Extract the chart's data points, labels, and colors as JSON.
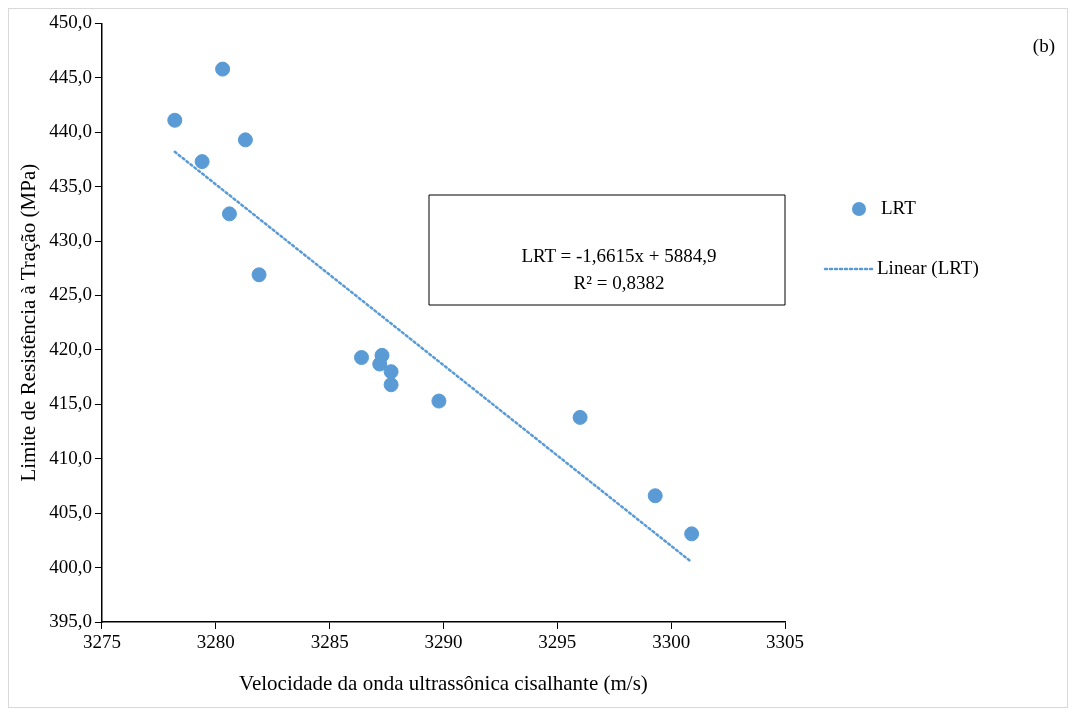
{
  "chart_data": {
    "type": "scatter",
    "xlabel": "Velocidade da onda ultrassônica cisalhante (m/s)",
    "ylabel": "Limite de Resistência à Tração (MPa)",
    "xlim": [
      3275,
      3305
    ],
    "xticks": [
      3275,
      3280,
      3285,
      3290,
      3295,
      3300,
      3305
    ],
    "ylim": [
      395,
      450
    ],
    "yticks": [
      {
        "value": 395,
        "label": "395,0"
      },
      {
        "value": 400,
        "label": "400,0"
      },
      {
        "value": 405,
        "label": "405,0"
      },
      {
        "value": 410,
        "label": "410,0"
      },
      {
        "value": 415,
        "label": "415,0"
      },
      {
        "value": 420,
        "label": "420,0"
      },
      {
        "value": 425,
        "label": "425,0"
      },
      {
        "value": 430,
        "label": "430,0"
      },
      {
        "value": 435,
        "label": "435,0"
      },
      {
        "value": 440,
        "label": "440,0"
      },
      {
        "value": 445,
        "label": "445,0"
      },
      {
        "value": 450,
        "label": "450,0"
      }
    ],
    "grid": false,
    "legend": "right",
    "marker": "circle",
    "series": [
      {
        "name": "LRT",
        "color": "#5b9bd5",
        "x": [
          3278.2,
          3280.3,
          3281.3,
          3279.4,
          3280.6,
          3281.9,
          3286.4,
          3287.3,
          3287.2,
          3287.7,
          3287.7,
          3289.8,
          3296.0,
          3299.3,
          3300.9
        ],
        "values": [
          441.1,
          445.8,
          439.3,
          437.3,
          432.5,
          426.9,
          419.3,
          419.5,
          418.7,
          418.0,
          416.8,
          415.3,
          413.8,
          406.6,
          403.1
        ]
      },
      {
        "name": "Linear (LRT)",
        "type": "line",
        "color": "#5b9bd5",
        "line_style": "dotted",
        "marker": "none",
        "x": [
          3278.2,
          3300.9
        ],
        "values": [
          438.2,
          400.5
        ]
      }
    ],
    "annotations": [
      "LRT = -1,6615x + 5884,9",
      "R² = 0,8382",
      "(b)"
    ]
  }
}
